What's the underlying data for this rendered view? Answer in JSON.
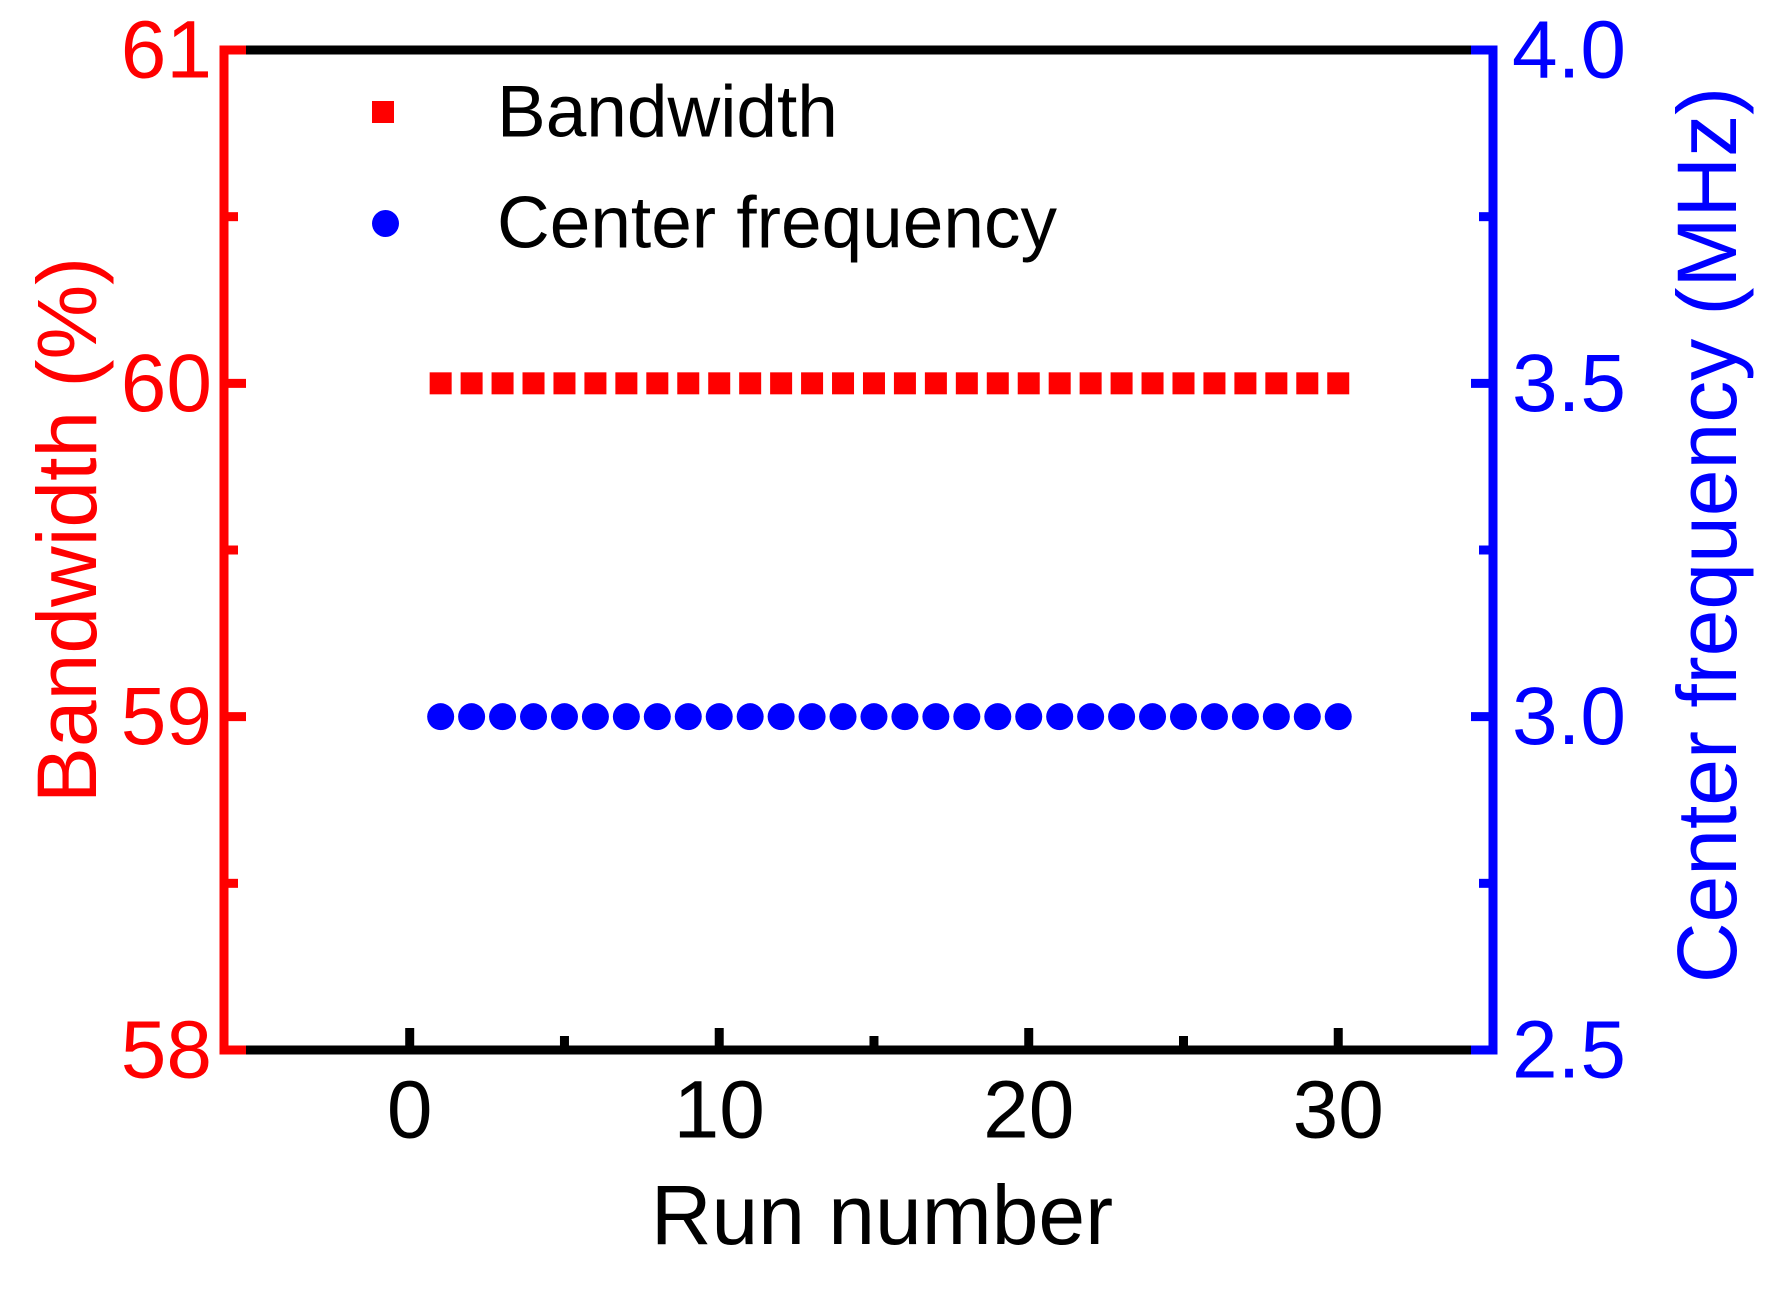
{
  "chart_data": {
    "type": "scatter",
    "x": [
      1,
      2,
      3,
      4,
      5,
      6,
      7,
      8,
      9,
      10,
      11,
      12,
      13,
      14,
      15,
      16,
      17,
      18,
      19,
      20,
      21,
      22,
      23,
      24,
      25,
      26,
      27,
      28,
      29,
      30
    ],
    "series": [
      {
        "name": "Bandwidth",
        "marker": "square",
        "color": "#ff0000",
        "axis": "left",
        "values": [
          60,
          60,
          60,
          60,
          60,
          60,
          60,
          60,
          60,
          60,
          60,
          60,
          60,
          60,
          60,
          60,
          60,
          60,
          60,
          60,
          60,
          60,
          60,
          60,
          60,
          60,
          60,
          60,
          60,
          60
        ]
      },
      {
        "name": "Center frequency",
        "marker": "circle",
        "color": "#0000ff",
        "axis": "right",
        "values": [
          3.0,
          3.0,
          3.0,
          3.0,
          3.0,
          3.0,
          3.0,
          3.0,
          3.0,
          3.0,
          3.0,
          3.0,
          3.0,
          3.0,
          3.0,
          3.0,
          3.0,
          3.0,
          3.0,
          3.0,
          3.0,
          3.0,
          3.0,
          3.0,
          3.0,
          3.0,
          3.0,
          3.0,
          3.0,
          3.0
        ]
      }
    ],
    "x_axis": {
      "label": "Run number",
      "color": "#000000",
      "range": [
        -6,
        35
      ],
      "major_ticks": [
        0,
        10,
        20,
        30
      ],
      "minor_ticks": [
        5,
        15,
        25
      ]
    },
    "left_axis": {
      "label": "Bandwidth (%)",
      "color": "#ff0000",
      "range": [
        58,
        61
      ],
      "major_ticks": [
        58,
        59,
        60,
        61
      ],
      "minor_ticks": [
        58.5,
        59.5,
        60.5
      ]
    },
    "right_axis": {
      "label": "Center frequency (MHz)",
      "color": "#0000ff",
      "range": [
        2.5,
        4.0
      ],
      "major_tick_labels": [
        "2.5",
        "3.0",
        "3.5",
        "4.0"
      ],
      "minor_ticks": [
        2.75,
        3.25,
        3.75
      ]
    },
    "legend": {
      "position": "top-left-inside",
      "items": [
        {
          "label": "Bandwidth",
          "marker": "square",
          "color": "#ff0000"
        },
        {
          "label": "Center frequency",
          "marker": "circle",
          "color": "#0000ff"
        }
      ]
    },
    "grid": false
  }
}
